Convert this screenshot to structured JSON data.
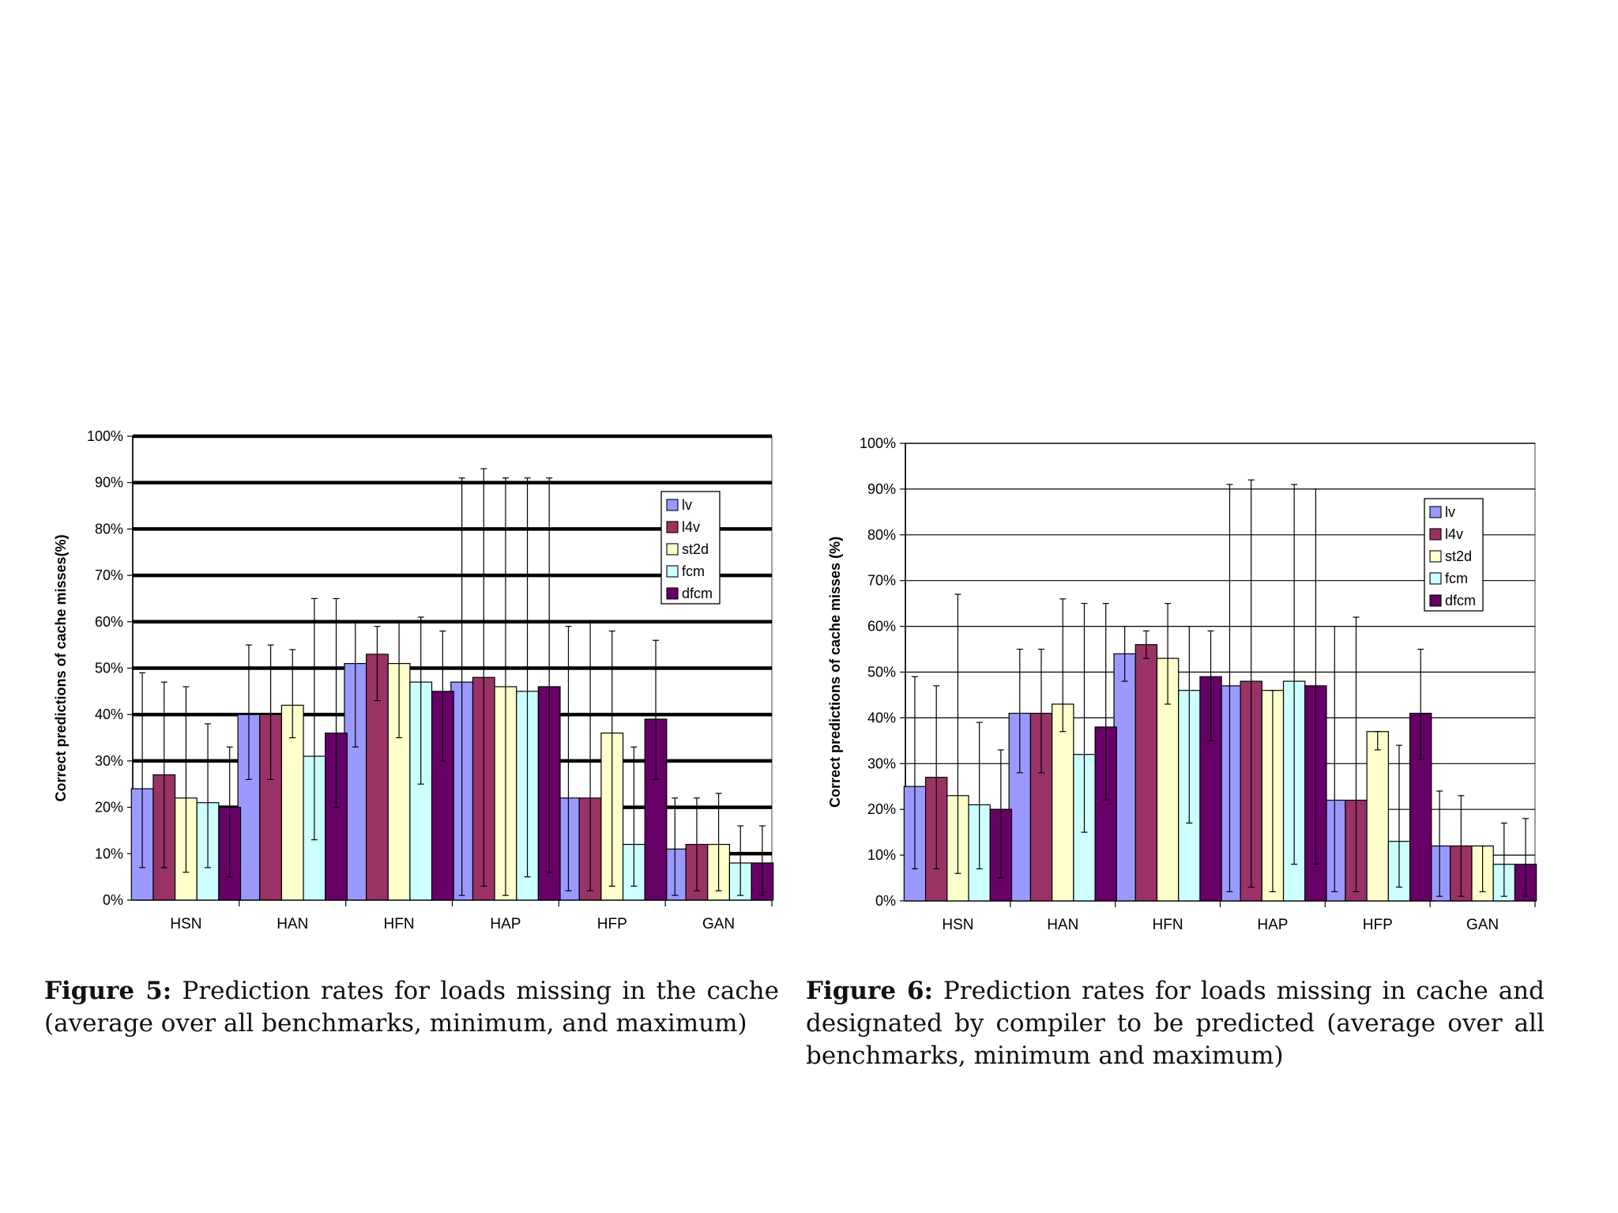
{
  "colors": {
    "lv": "#9999ff",
    "l4v": "#993366",
    "st2d": "#ffffcc",
    "fcm": "#ccffff",
    "dfcm": "#660066"
  },
  "chart_data": [
    {
      "type": "bar",
      "id": "fig5",
      "ylabel": "Correct predictions of cache misses(%)",
      "ylim": [
        0,
        100
      ],
      "yticks": [
        "0%",
        "10%",
        "20%",
        "30%",
        "40%",
        "50%",
        "60%",
        "70%",
        "80%",
        "90%",
        "100%"
      ],
      "grid": "heavy",
      "legend_position": "top-right",
      "categories": [
        "HSN",
        "HAN",
        "HFN",
        "HAP",
        "HFP",
        "GAN"
      ],
      "series": [
        {
          "name": "lv",
          "values": [
            24,
            40,
            51,
            47,
            22,
            11
          ],
          "min": [
            7,
            26,
            33,
            1,
            2,
            1
          ],
          "max": [
            49,
            55,
            60,
            91,
            59,
            22
          ]
        },
        {
          "name": "l4v",
          "values": [
            27,
            40,
            53,
            48,
            22,
            12
          ],
          "min": [
            7,
            26,
            43,
            3,
            2,
            2
          ],
          "max": [
            47,
            55,
            59,
            93,
            60,
            22
          ]
        },
        {
          "name": "st2d",
          "values": [
            22,
            42,
            51,
            46,
            36,
            12
          ],
          "min": [
            6,
            35,
            35,
            1,
            3,
            2
          ],
          "max": [
            46,
            54,
            60,
            91,
            58,
            23
          ]
        },
        {
          "name": "fcm",
          "values": [
            21,
            31,
            47,
            45,
            12,
            8
          ],
          "min": [
            7,
            13,
            25,
            5,
            3,
            1
          ],
          "max": [
            38,
            65,
            61,
            91,
            33,
            16
          ]
        },
        {
          "name": "dfcm",
          "values": [
            20,
            36,
            45,
            46,
            39,
            8
          ],
          "min": [
            5,
            20,
            30,
            6,
            26,
            1
          ],
          "max": [
            33,
            65,
            58,
            91,
            56,
            16
          ]
        }
      ],
      "caption_label": "Figure 5:",
      "caption_text": "Prediction rates for loads missing in the cache (average over all benchmarks, minimum, and maximum)"
    },
    {
      "type": "bar",
      "id": "fig6",
      "ylabel": "Correct predictions of cache misses (%)",
      "ylim": [
        0,
        100
      ],
      "yticks": [
        "0%",
        "10%",
        "20%",
        "30%",
        "40%",
        "50%",
        "60%",
        "70%",
        "80%",
        "90%",
        "100%"
      ],
      "grid": "thin",
      "legend_position": "top-right",
      "categories": [
        "HSN",
        "HAN",
        "HFN",
        "HAP",
        "HFP",
        "GAN"
      ],
      "series": [
        {
          "name": "lv",
          "values": [
            25,
            41,
            54,
            47,
            22,
            12
          ],
          "min": [
            7,
            28,
            48,
            2,
            2,
            1
          ],
          "max": [
            49,
            55,
            60,
            91,
            60,
            24
          ]
        },
        {
          "name": "l4v",
          "values": [
            27,
            41,
            56,
            48,
            22,
            12
          ],
          "min": [
            7,
            28,
            53,
            3,
            2,
            1
          ],
          "max": [
            47,
            55,
            59,
            92,
            62,
            23
          ]
        },
        {
          "name": "st2d",
          "values": [
            23,
            43,
            53,
            46,
            37,
            12
          ],
          "min": [
            6,
            37,
            43,
            2,
            33,
            2
          ],
          "max": [
            67,
            66,
            65,
            46,
            37,
            12
          ]
        },
        {
          "name": "fcm",
          "values": [
            21,
            32,
            46,
            48,
            13,
            8
          ],
          "min": [
            7,
            15,
            17,
            8,
            3,
            1
          ],
          "max": [
            39,
            65,
            60,
            91,
            34,
            17
          ]
        },
        {
          "name": "dfcm",
          "values": [
            20,
            38,
            49,
            47,
            41,
            8
          ],
          "min": [
            5,
            22,
            35,
            8,
            31,
            1
          ],
          "max": [
            33,
            65,
            59,
            90,
            55,
            18
          ]
        }
      ],
      "caption_label": "Figure 6:",
      "caption_text": "Prediction rates for loads missing in cache and designated by compiler to be predicted (average over all benchmarks, minimum and maximum)"
    }
  ]
}
